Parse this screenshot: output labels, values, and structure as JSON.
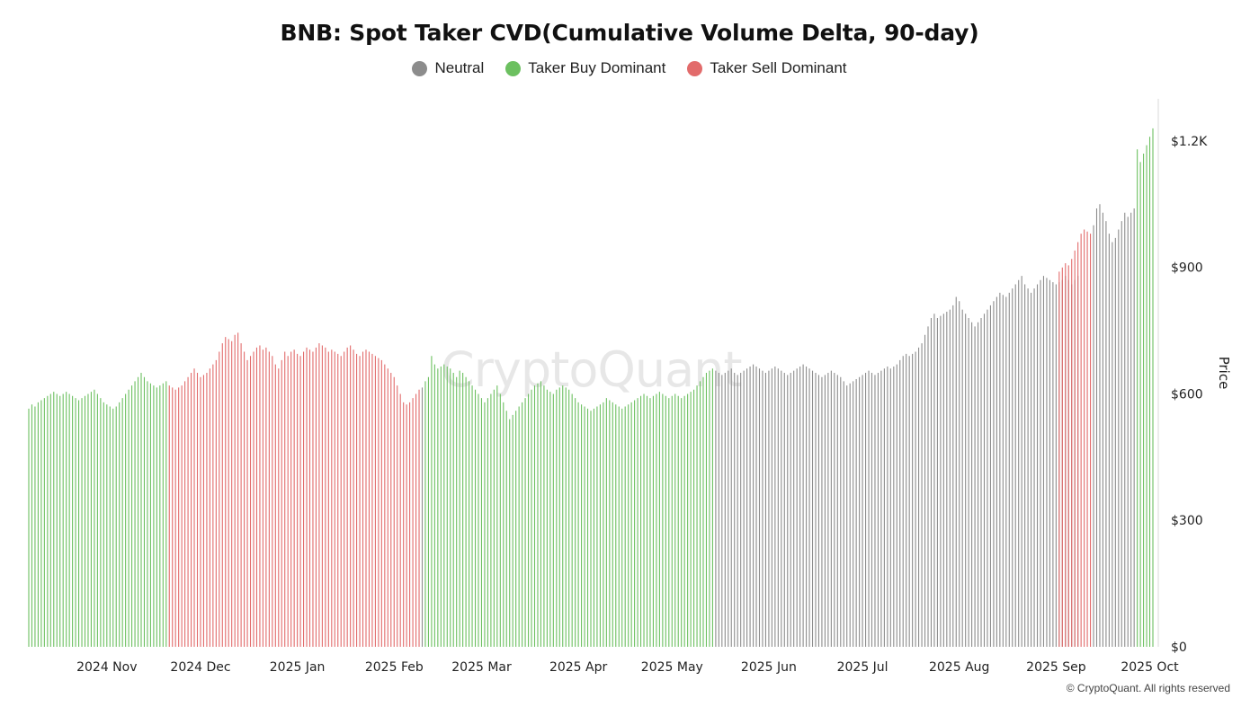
{
  "chart_data": {
    "type": "bar",
    "title": "BNB: Spot Taker CVD(Cumulative Volume Delta, 90-day)",
    "legend": [
      {
        "key": "neutral",
        "label": "Neutral",
        "color": "#8c8c8c"
      },
      {
        "key": "buy",
        "label": "Taker Buy Dominant",
        "color": "#6cc060"
      },
      {
        "key": "sell",
        "label": "Taker Sell Dominant",
        "color": "#e26b6b"
      }
    ],
    "y_axis": {
      "label": "Price",
      "position": "right",
      "ylim": [
        0,
        1300
      ],
      "ticks": [
        0,
        300,
        600,
        900,
        1200
      ],
      "tick_labels": [
        "$0",
        "$300",
        "$600",
        "$900",
        "$1.2K"
      ]
    },
    "x_axis": {
      "ticks": [
        {
          "date": "2024-11-01",
          "label": "2024 Nov"
        },
        {
          "date": "2024-12-01",
          "label": "2024 Dec"
        },
        {
          "date": "2025-01-01",
          "label": "2025 Jan"
        },
        {
          "date": "2025-02-01",
          "label": "2025 Feb"
        },
        {
          "date": "2025-03-01",
          "label": "2025 Mar"
        },
        {
          "date": "2025-04-01",
          "label": "2025 Apr"
        },
        {
          "date": "2025-05-01",
          "label": "2025 May"
        },
        {
          "date": "2025-06-01",
          "label": "2025 Jun"
        },
        {
          "date": "2025-07-01",
          "label": "2025 Jul"
        },
        {
          "date": "2025-08-01",
          "label": "2025 Aug"
        },
        {
          "date": "2025-09-01",
          "label": "2025 Sep"
        },
        {
          "date": "2025-10-01",
          "label": "2025 Oct"
        }
      ]
    },
    "grid": false,
    "legend_position": "top-center",
    "series": [
      {
        "state": "buy",
        "from": "2024-10-07",
        "values": [
          565,
          575,
          570,
          580,
          585,
          590,
          595,
          600,
          605,
          600,
          595,
          600,
          605,
          600,
          595,
          590,
          585,
          590,
          595,
          600,
          605,
          610,
          600,
          590,
          580,
          575,
          570,
          565,
          570,
          580,
          590,
          600,
          610,
          620,
          630,
          640,
          650,
          640,
          630,
          625,
          620,
          615,
          620,
          625,
          630
        ]
      },
      {
        "state": "sell",
        "from": "2024-11-21",
        "values": [
          620,
          615,
          610,
          615,
          620,
          630,
          640,
          650,
          660,
          650,
          640,
          645,
          650,
          660,
          670,
          680,
          700,
          720,
          735,
          730,
          725,
          740,
          745,
          720,
          700,
          680,
          690,
          700,
          710,
          715,
          705,
          710,
          700,
          690,
          670,
          660,
          680,
          700,
          690,
          700,
          705,
          695,
          690,
          700,
          710,
          705,
          700,
          710,
          720,
          715,
          710,
          700,
          705,
          700,
          695,
          690,
          700,
          710,
          715,
          705,
          695,
          690,
          700,
          705,
          700,
          695,
          690,
          685,
          680,
          670,
          660,
          650,
          640,
          620,
          600,
          580,
          575,
          580,
          590,
          600,
          610
        ]
      },
      {
        "state": "neutral",
        "from": "2025-02-10",
        "values": [
          615
        ]
      },
      {
        "state": "buy",
        "from": "2025-02-11",
        "values": [
          630,
          640,
          690,
          670,
          660,
          665,
          670,
          665,
          660,
          650,
          640,
          655,
          650,
          640,
          630,
          620,
          610,
          600,
          590,
          580,
          590,
          600,
          610,
          620,
          600,
          580,
          560,
          540,
          550,
          560,
          570,
          580,
          590,
          600,
          610,
          620,
          625,
          630,
          620,
          610,
          605,
          600,
          610,
          615,
          620,
          615,
          610,
          600,
          590,
          580,
          575,
          570,
          565,
          560,
          565,
          570,
          575,
          580,
          590,
          585,
          580,
          575,
          570,
          565,
          570,
          575,
          580,
          585,
          590,
          595,
          600,
          595,
          590,
          595,
          600,
          605,
          600,
          595,
          590,
          595,
          600,
          595,
          590,
          595,
          600,
          605,
          610,
          620,
          630,
          640,
          650,
          655,
          660
        ]
      },
      {
        "state": "neutral",
        "from": "2025-05-15",
        "values": [
          655,
          650,
          645,
          650,
          655,
          660,
          650,
          645,
          650,
          655,
          660,
          665,
          670,
          665,
          660,
          655,
          650,
          655,
          660,
          665,
          660,
          655,
          650,
          645,
          650,
          655,
          660,
          665,
          670,
          665,
          660,
          655,
          650,
          645,
          640,
          645,
          650,
          655,
          650,
          645,
          640,
          630,
          620,
          625,
          630,
          635,
          640,
          645,
          650,
          655,
          650,
          645,
          650,
          655,
          660,
          665,
          660,
          665,
          670,
          680,
          690,
          695,
          690,
          695,
          700,
          710,
          720,
          740,
          760,
          780,
          790,
          780,
          785,
          790,
          795,
          800,
          810,
          830,
          820,
          800,
          790,
          780,
          770,
          760,
          770,
          780,
          790,
          800,
          810,
          820,
          830,
          840,
          835,
          830,
          840,
          850,
          860,
          870,
          880,
          860,
          850,
          840,
          850,
          860,
          870,
          880,
          875,
          870,
          865,
          860,
          865,
          870,
          880,
          870,
          860,
          870,
          880
        ]
      },
      {
        "state": "sell",
        "from": "2025-09-02",
        "values": [
          890,
          900,
          910,
          905,
          920,
          940,
          960,
          980,
          990,
          985,
          980
        ]
      },
      {
        "state": "neutral",
        "from": "2025-09-13",
        "values": [
          1000,
          1040,
          1050,
          1030,
          1010,
          980,
          960,
          970,
          990,
          1010,
          1030,
          1020,
          1030,
          1040
        ]
      },
      {
        "state": "buy",
        "from": "2025-09-27",
        "values": [
          1180,
          1150,
          1170,
          1190,
          1210,
          1230
        ]
      }
    ]
  },
  "watermark": "CryptoQuant",
  "copyright": "© CryptoQuant. All rights reserved"
}
